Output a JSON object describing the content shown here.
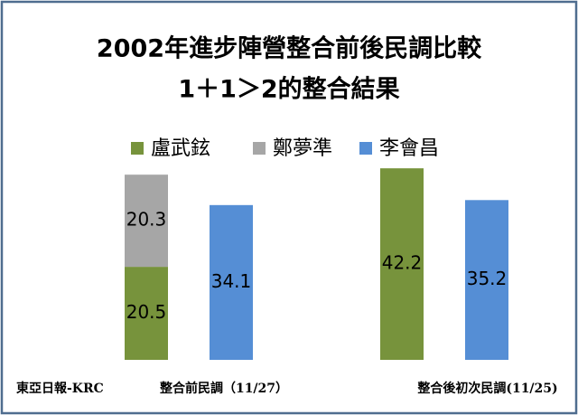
{
  "chart_data": {
    "type": "stacked_grouped_bar",
    "title": "2002年進步陣營整合前後民調比較",
    "subtitle": "1＋1＞2的整合結果",
    "source": "東亞日報-KRC",
    "categories": [
      "整合前民調（11/27）",
      "整合後初次民調(11/25)"
    ],
    "series": [
      {
        "name": "盧武鉉",
        "color": "#77933c",
        "values": [
          20.5,
          42.2
        ],
        "stack": 0
      },
      {
        "name": "鄭夢準",
        "color": "#a6a6a6",
        "values": [
          20.3,
          null
        ],
        "stack": 0
      },
      {
        "name": "李會昌",
        "color": "#558ed5",
        "values": [
          34.1,
          35.2
        ],
        "stack": 1
      }
    ],
    "legend": "top"
  }
}
